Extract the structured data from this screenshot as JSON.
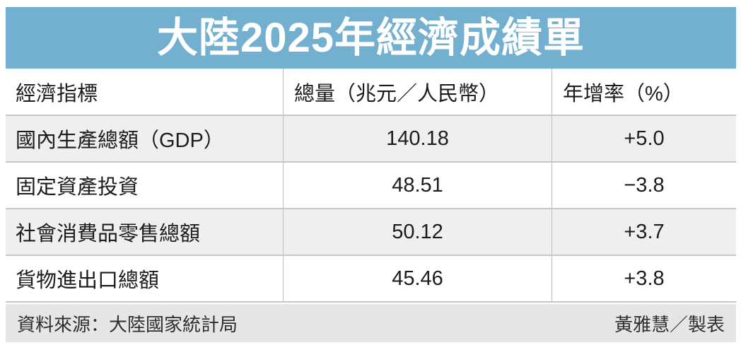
{
  "banner": {
    "title": "大陸2025年經濟成績單",
    "bg_color": "#73b0cf",
    "text_color": "#ffffff"
  },
  "chart_data": {
    "type": "table",
    "title": "大陸2025年經濟成績單",
    "columns": [
      "經濟指標",
      "總量（兆元／人民幣）",
      "年增率（%）"
    ],
    "rows": [
      [
        "國內生產總額（GDP）",
        "140.18",
        "+5.0"
      ],
      [
        "固定資產投資",
        "48.51",
        "−3.8"
      ],
      [
        "社會消費品零售總額",
        "50.12",
        "+3.7"
      ],
      [
        "貨物進出口總額",
        "45.46",
        "+3.8"
      ]
    ],
    "layout": {
      "alternating_row_bg": "#efefef",
      "grid": "horizontal rules + vertical column separators",
      "indicator_alignment": "left",
      "value_alignment": "center"
    }
  },
  "footer": {
    "source": "資料來源：大陸國家統計局",
    "credit": "黃雅慧／製表",
    "bg_color": "#e6e6e6"
  }
}
